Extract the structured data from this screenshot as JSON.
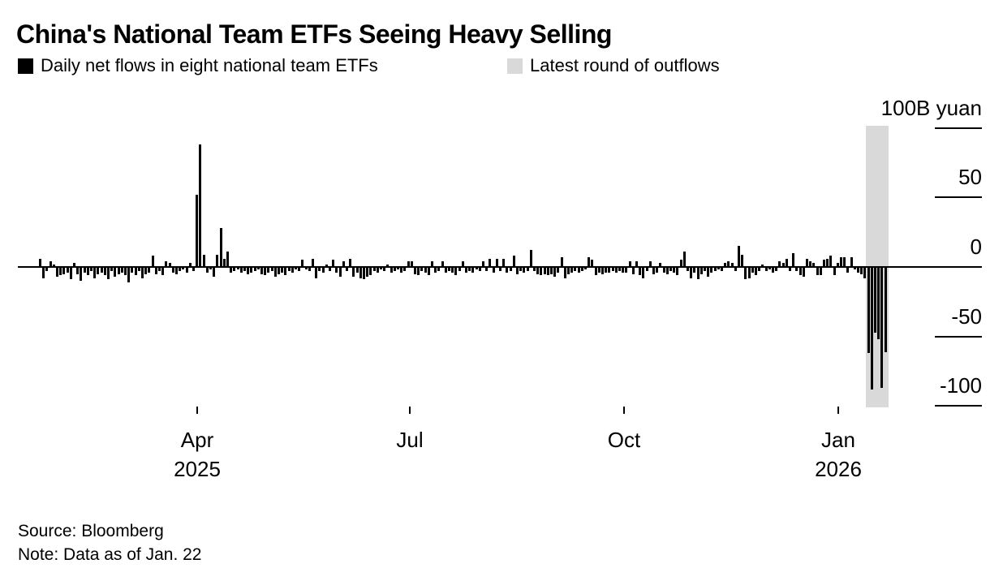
{
  "title": "China's National Team ETFs Seeing Heavy Selling",
  "legend": [
    {
      "label": "Daily net flows in eight national team ETFs",
      "color": "#000000"
    },
    {
      "label": "Latest round of outflows",
      "color": "#d9d9d9"
    }
  ],
  "footer": {
    "source": "Source: Bloomberg",
    "note": "Note: Data as of Jan. 22"
  },
  "chart_data": {
    "type": "bar",
    "title": "China's National Team ETFs Seeing Heavy Selling",
    "unit": "B yuan",
    "ylabel": "",
    "xlabel": "",
    "ylim": [
      -102,
      102
    ],
    "grid": false,
    "bar_color": "#000000",
    "y_ticks": [
      {
        "value": 100,
        "label": "100B yuan"
      },
      {
        "value": 50,
        "label": "50"
      },
      {
        "value": 0,
        "label": "0"
      },
      {
        "value": -50,
        "label": "-50"
      },
      {
        "value": -100,
        "label": "-100"
      }
    ],
    "x_ticks": [
      {
        "label": "Apr",
        "year": "2025"
      },
      {
        "label": "Jul"
      },
      {
        "label": "Oct"
      },
      {
        "label": "Jan",
        "year": "2026"
      }
    ],
    "highlight": {
      "label": "Latest round of outflows",
      "color": "#d9d9d9",
      "start_index": 243,
      "end_index": 248
    },
    "values": [
      6,
      -8,
      -3,
      4,
      2,
      -7,
      -6,
      -5,
      -4,
      -9,
      3,
      -5,
      -10,
      -4,
      -6,
      -3,
      -8,
      -5,
      -4,
      -6,
      -9,
      -3,
      -7,
      -5,
      -4,
      -6,
      -11,
      -4,
      -6,
      -3,
      -8,
      -5,
      -4,
      8,
      -5,
      -3,
      -6,
      4,
      3,
      -4,
      -5,
      -3,
      -2,
      -4,
      3,
      -3,
      52,
      88,
      9,
      -4,
      -2,
      -7,
      9,
      28,
      6,
      11,
      -4,
      -3,
      -2,
      -4,
      -3,
      -5,
      -4,
      -3,
      -2,
      -5,
      -6,
      -4,
      -3,
      -7,
      -5,
      -4,
      -6,
      -3,
      -4,
      -2,
      -3,
      5,
      -2,
      -3,
      6,
      -8,
      -3,
      -4,
      2,
      -3,
      5,
      -4,
      -7,
      4,
      -3,
      6,
      -7,
      -4,
      -8,
      -9,
      -7,
      -6,
      -3,
      -4,
      -2,
      -3,
      2,
      -4,
      -3,
      -2,
      -4,
      -3,
      4,
      4,
      -5,
      -6,
      -3,
      -4,
      -6,
      4,
      -4,
      -3,
      4,
      -4,
      -3,
      -4,
      -6,
      -3,
      4,
      -4,
      -3,
      -4,
      -2,
      -3,
      4,
      -3,
      6,
      -4,
      6,
      -3,
      6,
      -4,
      -3,
      8,
      -5,
      -3,
      -4,
      -3,
      12,
      -3,
      -5,
      -6,
      -5,
      -6,
      -5,
      -7,
      -4,
      7,
      -8,
      -5,
      -4,
      -3,
      -4,
      -3,
      -2,
      7,
      5,
      -6,
      -4,
      -5,
      -4,
      -4,
      -3,
      -4,
      -3,
      -4,
      -4,
      4,
      -5,
      4,
      -6,
      -8,
      -3,
      4,
      -5,
      -4,
      3,
      -4,
      -5,
      -3,
      -4,
      -6,
      5,
      11,
      -3,
      -8,
      -4,
      -9,
      -5,
      -3,
      -7,
      -4,
      -3,
      -2,
      -3,
      3,
      4,
      3,
      -3,
      15,
      9,
      -9,
      -8,
      -4,
      -6,
      -3,
      2,
      -3,
      -2,
      -4,
      -3,
      4,
      3,
      6,
      -3,
      10,
      -3,
      -6,
      -7,
      6,
      4,
      3,
      -6,
      -6,
      5,
      6,
      8,
      -6,
      3,
      7,
      7,
      -4,
      7,
      -2,
      -4,
      -5,
      -8,
      -62,
      -88,
      -47,
      -52,
      -87,
      -61
    ]
  }
}
